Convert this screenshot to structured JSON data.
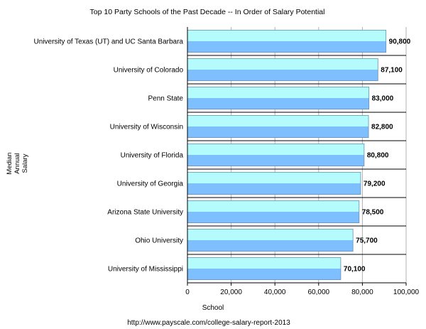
{
  "chart_data": {
    "type": "bar",
    "orientation": "horizontal",
    "title": "Top 10 Party Schools of the Past Decade -- In Order of Salary Potential",
    "ylabel_lines": [
      "Median",
      "Annual",
      "Salary"
    ],
    "xlabel": "School",
    "source": "http://www.payscale.com/college-salary-report-2013",
    "categories": [
      "University of Texas (UT) and UC Santa Barbara",
      "University of Colorado",
      "Penn State",
      "University of Wisconsin",
      "University of Florida",
      "University of Georgia",
      "Arizona State University",
      "Ohio University",
      "University of Mississippi"
    ],
    "values": [
      90800,
      87100,
      83000,
      82800,
      80800,
      79200,
      78500,
      75700,
      70100
    ],
    "value_labels": [
      "90,800",
      "87,100",
      "83,000",
      "82,800",
      "80,800",
      "79,200",
      "78,500",
      "75,700",
      "70,100"
    ],
    "xlim": [
      0,
      100000
    ],
    "xticks": [
      0,
      20000,
      40000,
      60000,
      80000,
      100000
    ],
    "xtick_labels": [
      "0",
      "20,000",
      "40,000",
      "60,000",
      "80,000",
      "100,000"
    ],
    "grid": "vertical",
    "colors": {
      "bar_top": "#b4fcfc",
      "bar_bottom": "#7ec0ff",
      "bar_edge": "#6a8fb0",
      "gridline": "#b0b0b0",
      "axis": "#000000"
    }
  }
}
